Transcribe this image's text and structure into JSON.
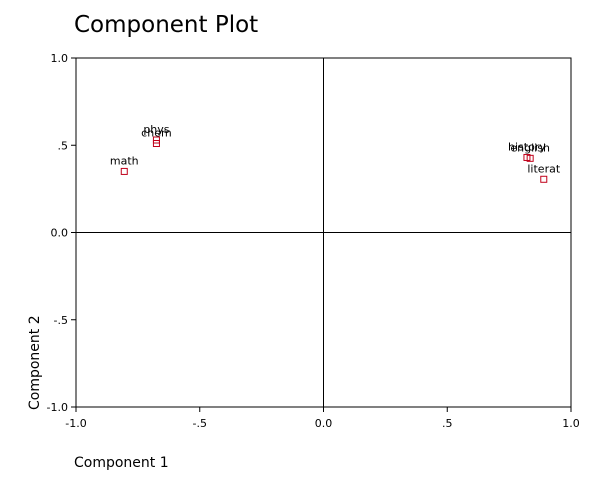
{
  "chart_data": {
    "type": "scatter",
    "title": "Component Plot",
    "xlabel": "Component 1",
    "ylabel": "Component 2",
    "xlim": [
      -1.0,
      1.0
    ],
    "ylim": [
      -1.0,
      1.0
    ],
    "x_ticks": [
      {
        "value": -1.0,
        "label": "-1.0"
      },
      {
        "value": -0.5,
        "label": "-.5"
      },
      {
        "value": 0.0,
        "label": "0.0"
      },
      {
        "value": 0.5,
        "label": ".5"
      },
      {
        "value": 1.0,
        "label": "1.0"
      }
    ],
    "y_ticks": [
      {
        "value": 1.0,
        "label": "1.0"
      },
      {
        "value": 0.5,
        "label": ".5"
      },
      {
        "value": 0.0,
        "label": "0.0"
      },
      {
        "value": -0.5,
        "label": "-.5"
      },
      {
        "value": -1.0,
        "label": "-1.0"
      }
    ],
    "reference_lines": {
      "x": 0,
      "y": 0
    },
    "grid": false,
    "marker_color": "#c0001a",
    "points": [
      {
        "label": "phys",
        "x": -0.675,
        "y": 0.53
      },
      {
        "label": "chem",
        "x": -0.675,
        "y": 0.51
      },
      {
        "label": "math",
        "x": -0.805,
        "y": 0.35
      },
      {
        "label": "history",
        "x": 0.822,
        "y": 0.43
      },
      {
        "label": "english",
        "x": 0.835,
        "y": 0.425
      },
      {
        "label": "literat",
        "x": 0.89,
        "y": 0.305
      }
    ]
  }
}
